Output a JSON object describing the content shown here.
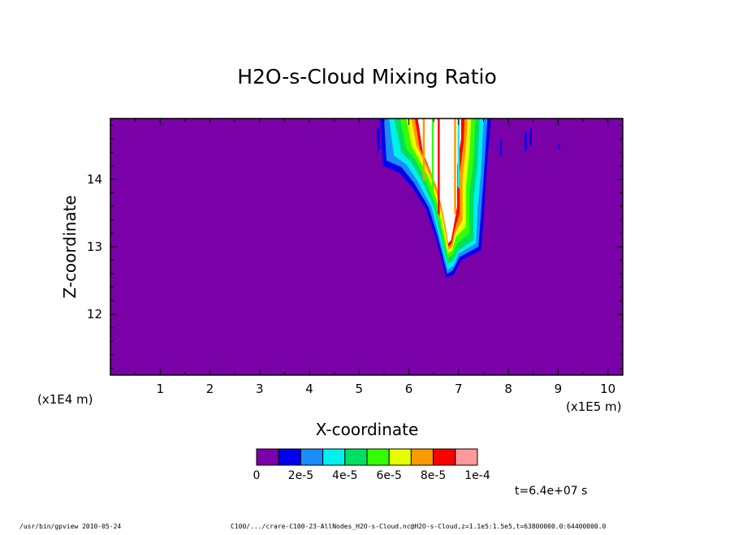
{
  "chart_data": {
    "type": "heatmap",
    "title": "H2O-s-Cloud Mixing Ratio",
    "xlabel": "X-coordinate",
    "ylabel": "Z-coordinate",
    "x_scale_label": "(x1E5 m)",
    "y_scale_label": "(x1E4 m)",
    "xlim": [
      0,
      10.3
    ],
    "ylim": [
      11.1,
      14.9
    ],
    "x_ticks": [
      1,
      2,
      3,
      4,
      5,
      6,
      7,
      8,
      9,
      10
    ],
    "y_ticks": [
      12,
      13,
      14
    ],
    "background_value": 0,
    "colorbar": {
      "colors": [
        "#7a00a8",
        "#0000ee",
        "#1a8cff",
        "#00f0f0",
        "#00e060",
        "#33ff00",
        "#e6ff00",
        "#ff9900",
        "#ff0000",
        "#ff9999"
      ],
      "tick_labels": [
        "0",
        "2e-5",
        "4e-5",
        "6e-5",
        "8e-5",
        "1e-4"
      ],
      "tick_values": [
        0,
        2e-05,
        4e-05,
        6e-05,
        8e-05,
        0.0001
      ],
      "over_color": "#ffffff"
    },
    "cloud_region": {
      "x_range": [
        5.3,
        8.8
      ],
      "z_range": [
        12.55,
        14.9
      ],
      "max_value_x": 6.75,
      "bottom_z": 12.55
    },
    "time_label": "t=6.4e+07 s"
  },
  "footer": {
    "left": "/usr/bin/gpview  2010-05-24",
    "right": "C100/.../crare-C100-23-AllNodes_H2O-s-Cloud.nc@H2O-s-Cloud,z=1.1e5:1.5e5,t=63800000.0:64400000.0"
  }
}
